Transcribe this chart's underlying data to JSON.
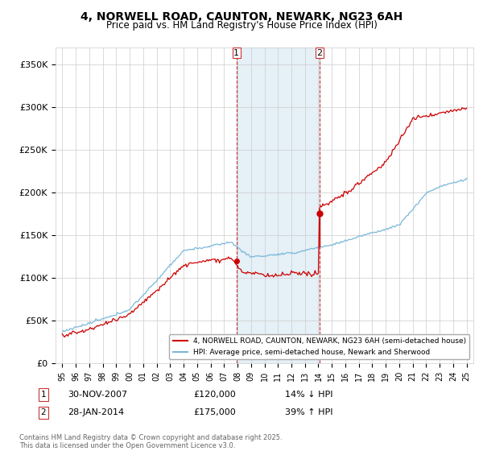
{
  "title": "4, NORWELL ROAD, CAUNTON, NEWARK, NG23 6AH",
  "subtitle": "Price paid vs. HM Land Registry's House Price Index (HPI)",
  "legend_line1": "4, NORWELL ROAD, CAUNTON, NEWARK, NG23 6AH (semi-detached house)",
  "legend_line2": "HPI: Average price, semi-detached house, Newark and Sherwood",
  "footnote": "Contains HM Land Registry data © Crown copyright and database right 2025.\nThis data is licensed under the Open Government Licence v3.0.",
  "transaction1_date": "30-NOV-2007",
  "transaction1_price": "£120,000",
  "transaction1_hpi": "14% ↓ HPI",
  "transaction2_date": "28-JAN-2014",
  "transaction2_price": "£175,000",
  "transaction2_hpi": "39% ↑ HPI",
  "sale1_year": 2007.92,
  "sale1_price": 120000,
  "sale2_year": 2014.08,
  "sale2_price": 175000,
  "ylabel_ticks": [
    "£0",
    "£50K",
    "£100K",
    "£150K",
    "£200K",
    "£250K",
    "£300K",
    "£350K"
  ],
  "ytick_vals": [
    0,
    50000,
    100000,
    150000,
    200000,
    250000,
    300000,
    350000
  ],
  "ylim": [
    0,
    370000
  ],
  "xlim_start": 1994.5,
  "xlim_end": 2025.5,
  "hpi_color": "#7ab8d9",
  "price_color": "#cc0000",
  "bg_color": "#ffffff",
  "plot_bg_color": "#ffffff",
  "grid_color": "#cccccc",
  "vline_color": "#cc3333",
  "shade_color": "#daeaf5"
}
